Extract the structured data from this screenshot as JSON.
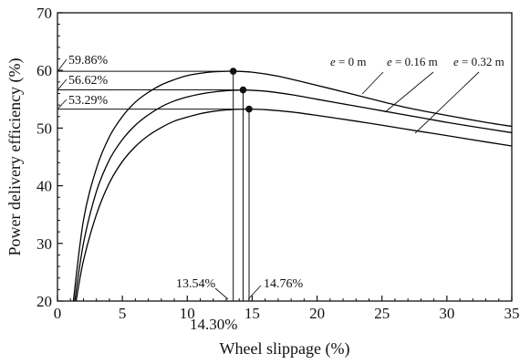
{
  "chart_data": {
    "type": "line",
    "title": "",
    "xlabel": "Wheel slippage (%)",
    "ylabel": "Power delivery efficiency (%)",
    "xlim": [
      0,
      35
    ],
    "ylim": [
      20,
      70
    ],
    "xticks": [
      0,
      5,
      10,
      15,
      20,
      25,
      30,
      35
    ],
    "yticks": [
      20,
      30,
      40,
      50,
      60,
      70
    ],
    "grid": false,
    "series": [
      {
        "name": "e = 0 m",
        "label_var": "e",
        "label_rest": " = 0 m",
        "color": "#000000",
        "x": [
          1.2,
          2,
          3,
          4,
          5,
          6,
          7,
          8,
          9,
          10,
          11,
          12,
          13,
          13.54,
          15,
          17,
          20,
          22,
          25,
          27,
          30,
          33,
          35
        ],
        "y": [
          19.5,
          34,
          43,
          48.5,
          52,
          54.5,
          56.2,
          57.5,
          58.4,
          59.1,
          59.5,
          59.75,
          59.85,
          59.86,
          59.7,
          59.0,
          57.4,
          56.3,
          54.6,
          53.5,
          52.2,
          51.0,
          50.3
        ],
        "peak": {
          "x": 13.54,
          "y": 59.86
        },
        "x_label_text": "13.54%",
        "y_label_text": "59.86%"
      },
      {
        "name": "e = 0.16 m",
        "label_var": "e",
        "label_rest": " = 0.16 m",
        "color": "#000000",
        "x": [
          1.3,
          2,
          3,
          4,
          5,
          6,
          7,
          8,
          9,
          10,
          11,
          12,
          13,
          14,
          14.3,
          16,
          18,
          20,
          23,
          25,
          28,
          30,
          33,
          35
        ],
        "y": [
          19.5,
          30,
          39,
          44.5,
          48,
          50.5,
          52.3,
          53.7,
          54.7,
          55.4,
          55.9,
          56.25,
          56.48,
          56.6,
          56.62,
          56.4,
          55.8,
          55.0,
          53.8,
          53.0,
          51.8,
          51.0,
          49.9,
          49.2
        ],
        "peak": {
          "x": 14.3,
          "y": 56.62
        },
        "x_label_text": "14.30%",
        "y_label_text": "56.62%"
      },
      {
        "name": "e = 0.32 m",
        "label_var": "e",
        "label_rest": " = 0.32 m",
        "color": "#000000",
        "x": [
          1.4,
          2,
          3,
          4,
          5,
          6,
          7,
          8,
          9,
          10,
          11,
          12,
          13,
          14,
          14.76,
          16,
          18,
          20,
          23,
          25,
          28,
          30,
          33,
          35
        ],
        "y": [
          19.5,
          27,
          35,
          40.5,
          44.2,
          46.8,
          48.7,
          50.1,
          51.2,
          51.9,
          52.5,
          52.9,
          53.15,
          53.27,
          53.29,
          53.2,
          52.8,
          52.2,
          51.2,
          50.5,
          49.4,
          48.7,
          47.6,
          46.9
        ],
        "peak": {
          "x": 14.76,
          "y": 53.29
        },
        "x_label_text": "14.76%",
        "y_label_text": "53.29%"
      }
    ]
  }
}
